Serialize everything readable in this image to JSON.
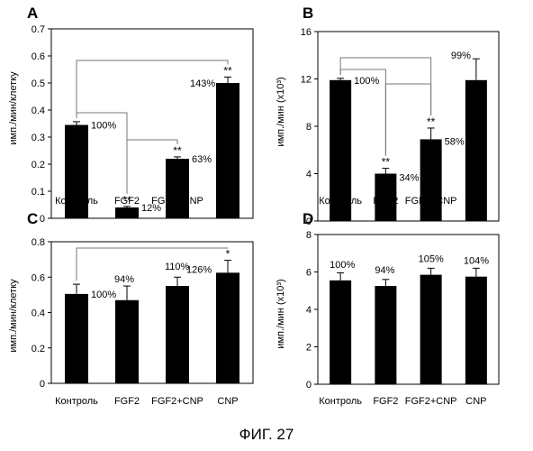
{
  "figure_caption": "ФИГ. 27",
  "chart_data": [
    {
      "panel": "A",
      "type": "bar",
      "ylabel": "имп./мин/клетку",
      "ylim": [
        0,
        0.7
      ],
      "yticks": [
        "0",
        "0.1",
        "0.2",
        "0.3",
        "0.4",
        "0.5",
        "0.6",
        "0.7"
      ],
      "categories": [
        "Контроль",
        "FGF2",
        "FGF2+CNP",
        "CNP"
      ],
      "values": [
        0.345,
        0.04,
        0.22,
        0.5
      ],
      "errors": [
        0.012,
        0.004,
        0.007,
        0.022
      ],
      "labels": [
        "100%",
        "12%",
        "63%",
        "143%"
      ],
      "significance": [
        "",
        "**",
        "**",
        "**"
      ],
      "brackets": [
        [
          0,
          1
        ],
        [
          0,
          3
        ],
        [
          1,
          2
        ]
      ]
    },
    {
      "panel": "B",
      "type": "bar",
      "ylabel": "имп./мин (x10³)",
      "ylim": [
        0,
        16
      ],
      "yticks": [
        "0",
        "4",
        "8",
        "12",
        "16"
      ],
      "categories": [
        "Контроль",
        "FGF2",
        "FGF2+CNP",
        "CNP"
      ],
      "values": [
        11.9,
        4.0,
        6.9,
        11.9
      ],
      "errors": [
        0.15,
        0.45,
        0.95,
        1.8
      ],
      "labels": [
        "100%",
        "34%",
        "58%",
        "99%"
      ],
      "significance": [
        "",
        "**",
        "**",
        ""
      ],
      "brackets": [
        [
          0,
          1
        ],
        [
          0,
          2
        ],
        [
          1,
          2
        ]
      ]
    },
    {
      "panel": "C",
      "type": "bar",
      "ylabel": "имп./мин/клетку",
      "ylim": [
        0,
        0.8
      ],
      "yticks": [
        "0",
        "0.2",
        "0.4",
        "0.6",
        "0.8"
      ],
      "categories": [
        "Контроль",
        "FGF2",
        "FGF2+CNP",
        "CNP"
      ],
      "values": [
        0.505,
        0.47,
        0.55,
        0.625
      ],
      "errors": [
        0.055,
        0.08,
        0.05,
        0.07
      ],
      "labels": [
        "100%",
        "94%",
        "110%",
        "126%"
      ],
      "significance": [
        "",
        "",
        "",
        "*"
      ],
      "brackets": [
        [
          0,
          3
        ]
      ]
    },
    {
      "panel": "D",
      "type": "bar",
      "ylabel": "имп./мин (x10³)",
      "ylim": [
        0,
        8
      ],
      "yticks": [
        "0",
        "2",
        "4",
        "6",
        "8"
      ],
      "categories": [
        "Контроль",
        "FGF2",
        "FGF2+CNP",
        "CNP"
      ],
      "values": [
        5.55,
        5.25,
        5.85,
        5.75
      ],
      "errors": [
        0.4,
        0.35,
        0.35,
        0.45
      ],
      "labels": [
        "100%",
        "94%",
        "105%",
        "104%"
      ],
      "significance": [
        "",
        "",
        "",
        ""
      ],
      "brackets": []
    }
  ]
}
